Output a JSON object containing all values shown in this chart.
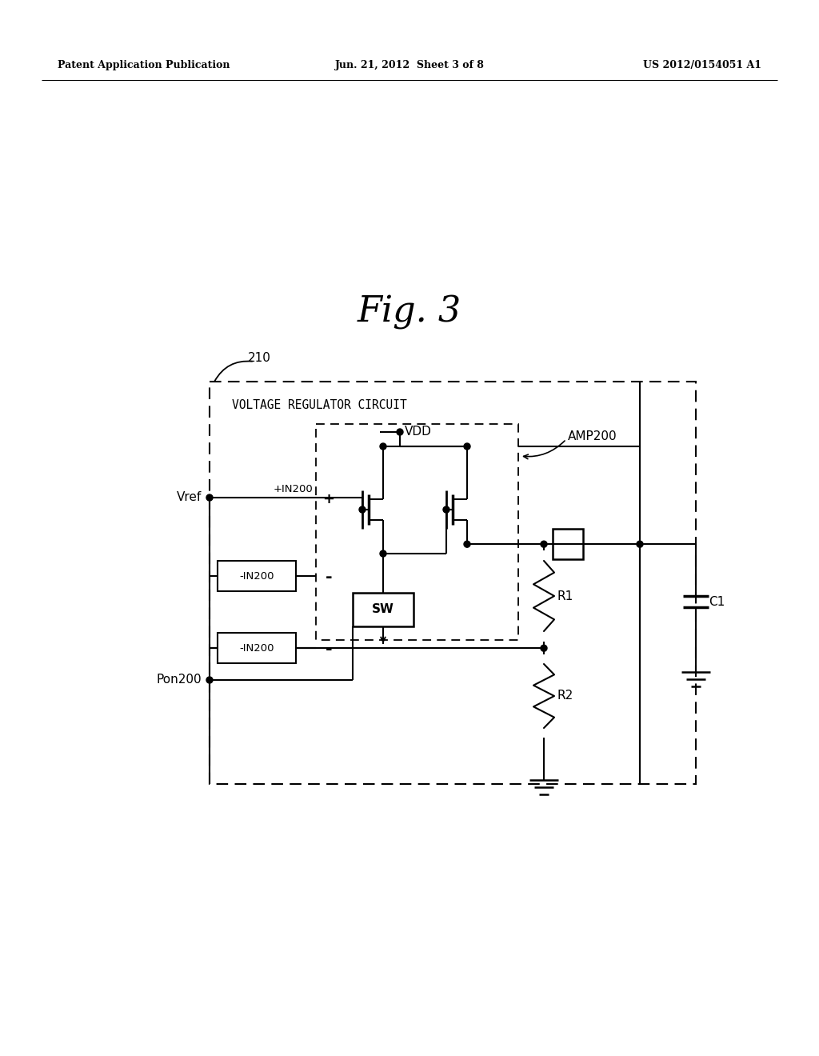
{
  "header_left": "Patent Application Publication",
  "header_center": "Jun. 21, 2012  Sheet 3 of 8",
  "header_right": "US 2012/0154051 A1",
  "fig_title": "Fig. 3",
  "label_210": "210",
  "label_vrc": "VOLTAGE REGULATOR CIRCUIT",
  "label_amp200": "AMP200",
  "label_vdd": "VDD",
  "label_vref": "Vref",
  "label_in_pos": "+IN200",
  "label_in_neg": "-IN200",
  "label_pon200": "Pon200",
  "label_r1": "R1",
  "label_r2": "R2",
  "label_c1": "C1",
  "label_sw": "SW",
  "bg_color": "#ffffff"
}
